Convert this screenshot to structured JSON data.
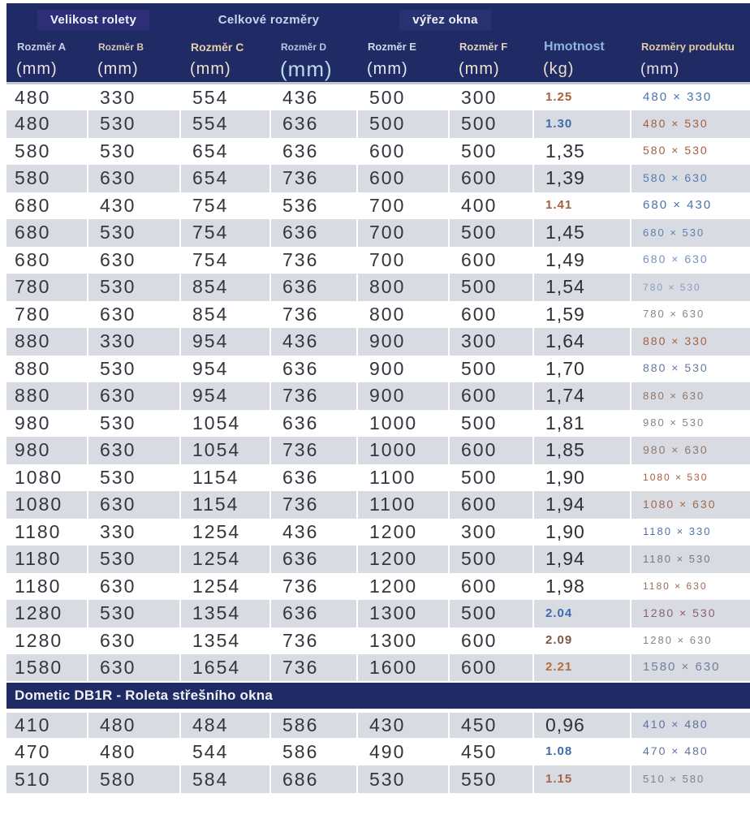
{
  "colors": {
    "header_navy": "#202a64",
    "section_navy": "#202b66",
    "row_shade": "#d9dbe3",
    "velikost_box": "#2c2f78",
    "vyrez_box": "#273370",
    "weight_brown": "#a5603c",
    "weight_blue": "#3e6cab",
    "dim_text": "#35353e"
  },
  "table": {
    "groups": [
      "Velikost rolety",
      "Celkové rozměry",
      "výřez okna"
    ],
    "columns": [
      {
        "label": "Rozměr A",
        "unit": "(mm)"
      },
      {
        "label": "Rozměr B",
        "unit": "(mm)"
      },
      {
        "label": "Rozměr C",
        "unit": "(mm)"
      },
      {
        "label": "Rozměr D",
        "unit": "(mm)"
      },
      {
        "label": "Rozměr E",
        "unit": "(mm)"
      },
      {
        "label": "Rozměr F",
        "unit": "(mm)"
      },
      {
        "label": "Hmotnost",
        "unit": "(kg)"
      },
      {
        "label": "Rozměry produktu",
        "unit": "(mm)"
      }
    ],
    "section": "Dometic DB1R - Roleta střešního okna",
    "rows_main": [
      {
        "dims": [
          "480",
          "330",
          "554",
          "436",
          "500",
          "300"
        ],
        "w": "1.25",
        "ws": "sm",
        "wc": "#a5603c",
        "p": "480 × 330",
        "pc": "#4a74ad",
        "ps": 15,
        "shaded": false
      },
      {
        "dims": [
          "480",
          "530",
          "554",
          "636",
          "500",
          "500"
        ],
        "w": "1.30",
        "ws": "sm",
        "wc": "#3e6cab",
        "p": "480 × 530",
        "pc": "#a0613f",
        "ps": 14,
        "shaded": true
      },
      {
        "dims": [
          "580",
          "530",
          "654",
          "636",
          "600",
          "500"
        ],
        "w": "1,35",
        "ws": "lg",
        "wc": "#2f2f38",
        "p": "580 × 530",
        "pc": "#a0613f",
        "ps": 14,
        "shaded": false
      },
      {
        "dims": [
          "580",
          "630",
          "654",
          "736",
          "600",
          "600"
        ],
        "w": "1,39",
        "ws": "lg",
        "wc": "#2f2f38",
        "p": "580 × 630",
        "pc": "#567ab0",
        "ps": 14,
        "shaded": true
      },
      {
        "dims": [
          "680",
          "430",
          "754",
          "536",
          "700",
          "400"
        ],
        "w": "1.41",
        "ws": "sm",
        "wc": "#a5603c",
        "p": "680 × 430",
        "pc": "#4a74ad",
        "ps": 15,
        "shaded": false
      },
      {
        "dims": [
          "680",
          "530",
          "754",
          "636",
          "700",
          "500"
        ],
        "w": "1,45",
        "ws": "lg",
        "wc": "#2f2f38",
        "p": "680 × 530",
        "pc": "#5d7fae",
        "ps": 13,
        "shaded": true
      },
      {
        "dims": [
          "680",
          "630",
          "754",
          "736",
          "700",
          "600"
        ],
        "w": "1,49",
        "ws": "lg",
        "wc": "#2f2f38",
        "p": "680 × 630",
        "pc": "#7593bd",
        "ps": 14,
        "shaded": false
      },
      {
        "dims": [
          "780",
          "530",
          "854",
          "636",
          "800",
          "500"
        ],
        "w": "1,54",
        "ws": "lg",
        "wc": "#2f2f38",
        "p": "780 × 530",
        "pc": "#8a9cc0",
        "ps": 12,
        "shaded": true
      },
      {
        "dims": [
          "780",
          "630",
          "854",
          "736",
          "800",
          "600"
        ],
        "w": "1,59",
        "ws": "lg",
        "wc": "#2f2f38",
        "p": "780 × 630",
        "pc": "#84848e",
        "ps": 13,
        "shaded": false
      },
      {
        "dims": [
          "880",
          "330",
          "954",
          "436",
          "900",
          "300"
        ],
        "w": "1,64",
        "ws": "lg",
        "wc": "#2f2f38",
        "p": "880 × 330",
        "pc": "#a45f42",
        "ps": 14,
        "shaded": true
      },
      {
        "dims": [
          "880",
          "530",
          "954",
          "636",
          "900",
          "500"
        ],
        "w": "1,70",
        "ws": "lg",
        "wc": "#2f2f38",
        "p": "880 × 530",
        "pc": "#67799b",
        "ps": 14,
        "shaded": false
      },
      {
        "dims": [
          "880",
          "630",
          "954",
          "736",
          "900",
          "600"
        ],
        "w": "1,74",
        "ws": "lg",
        "wc": "#2f2f38",
        "p": "880 × 630",
        "pc": "#8f7668",
        "ps": 13,
        "shaded": true
      },
      {
        "dims": [
          "980",
          "530",
          "1054",
          "636",
          "1000",
          "500"
        ],
        "w": "1,81",
        "ws": "lg",
        "wc": "#2f2f38",
        "p": "980 × 530",
        "pc": "#85858a",
        "ps": 13,
        "shaded": false
      },
      {
        "dims": [
          "980",
          "630",
          "1054",
          "736",
          "1000",
          "600"
        ],
        "w": "1,85",
        "ws": "lg",
        "wc": "#2f2f38",
        "p": "980 × 630",
        "pc": "#8d7a6e",
        "ps": 14,
        "shaded": true
      },
      {
        "dims": [
          "1080",
          "530",
          "1154",
          "636",
          "1100",
          "500"
        ],
        "w": "1,90",
        "ws": "lg",
        "wc": "#2f2f38",
        "p": "1080 × 530",
        "pc": "#ab5b3c",
        "ps": 12,
        "shaded": false
      },
      {
        "dims": [
          "1080",
          "630",
          "1154",
          "736",
          "1100",
          "600"
        ],
        "w": "1,94",
        "ws": "lg",
        "wc": "#2f2f38",
        "p": "1080 × 630",
        "pc": "#9c6a50",
        "ps": 14,
        "shaded": true
      },
      {
        "dims": [
          "1180",
          "330",
          "1254",
          "436",
          "1200",
          "300"
        ],
        "w": "1,90",
        "ws": "lg",
        "wc": "#2f2f38",
        "p": "1180 × 330",
        "pc": "#4a74ad",
        "ps": 13,
        "shaded": false
      },
      {
        "dims": [
          "1180",
          "530",
          "1254",
          "636",
          "1200",
          "500"
        ],
        "w": "1,94",
        "ws": "lg",
        "wc": "#2f2f38",
        "p": "1180 × 530",
        "pc": "#77777f",
        "ps": 13,
        "shaded": true
      },
      {
        "dims": [
          "1180",
          "630",
          "1254",
          "736",
          "1200",
          "600"
        ],
        "w": "1,98",
        "ws": "lg",
        "wc": "#2f2f38",
        "p": "1180 × 630",
        "pc": "#9b6a55",
        "ps": 12,
        "shaded": false
      },
      {
        "dims": [
          "1280",
          "530",
          "1354",
          "636",
          "1300",
          "500"
        ],
        "w": "2.04",
        "ws": "sm",
        "wc": "#3e6cab",
        "p": "1280 × 530",
        "pc": "#8c5f6b",
        "ps": 14,
        "shaded": true
      },
      {
        "dims": [
          "1280",
          "630",
          "1354",
          "736",
          "1300",
          "600"
        ],
        "w": "2.09",
        "ws": "sm",
        "wc": "#7d5844",
        "p": "1280 × 630",
        "pc": "#84848c",
        "ps": 13,
        "shaded": false
      },
      {
        "dims": [
          "1580",
          "630",
          "1654",
          "736",
          "1600",
          "600"
        ],
        "w": "2.21",
        "ws": "sm",
        "wc": "#b06f3e",
        "p": "1580 × 630",
        "pc": "#6f7f95",
        "ps": 15,
        "shaded": true
      }
    ],
    "rows_db1r": [
      {
        "dims": [
          "410",
          "480",
          "484",
          "586",
          "430",
          "450"
        ],
        "w": "0,96",
        "ws": "lg",
        "wc": "#2f2f38",
        "p": "410 × 480",
        "pc": "#5d7399",
        "ps": 14,
        "shaded": true
      },
      {
        "dims": [
          "470",
          "480",
          "544",
          "586",
          "490",
          "450"
        ],
        "w": "1.08",
        "ws": "sm",
        "wc": "#3e6cab",
        "p": "470 × 480",
        "pc": "#5f7599",
        "ps": 14,
        "shaded": false
      },
      {
        "dims": [
          "510",
          "580",
          "584",
          "686",
          "530",
          "550"
        ],
        "w": "1.15",
        "ws": "sm",
        "wc": "#a5654a",
        "p": "510 × 580",
        "pc": "#80808a",
        "ps": 13,
        "shaded": true
      }
    ]
  }
}
